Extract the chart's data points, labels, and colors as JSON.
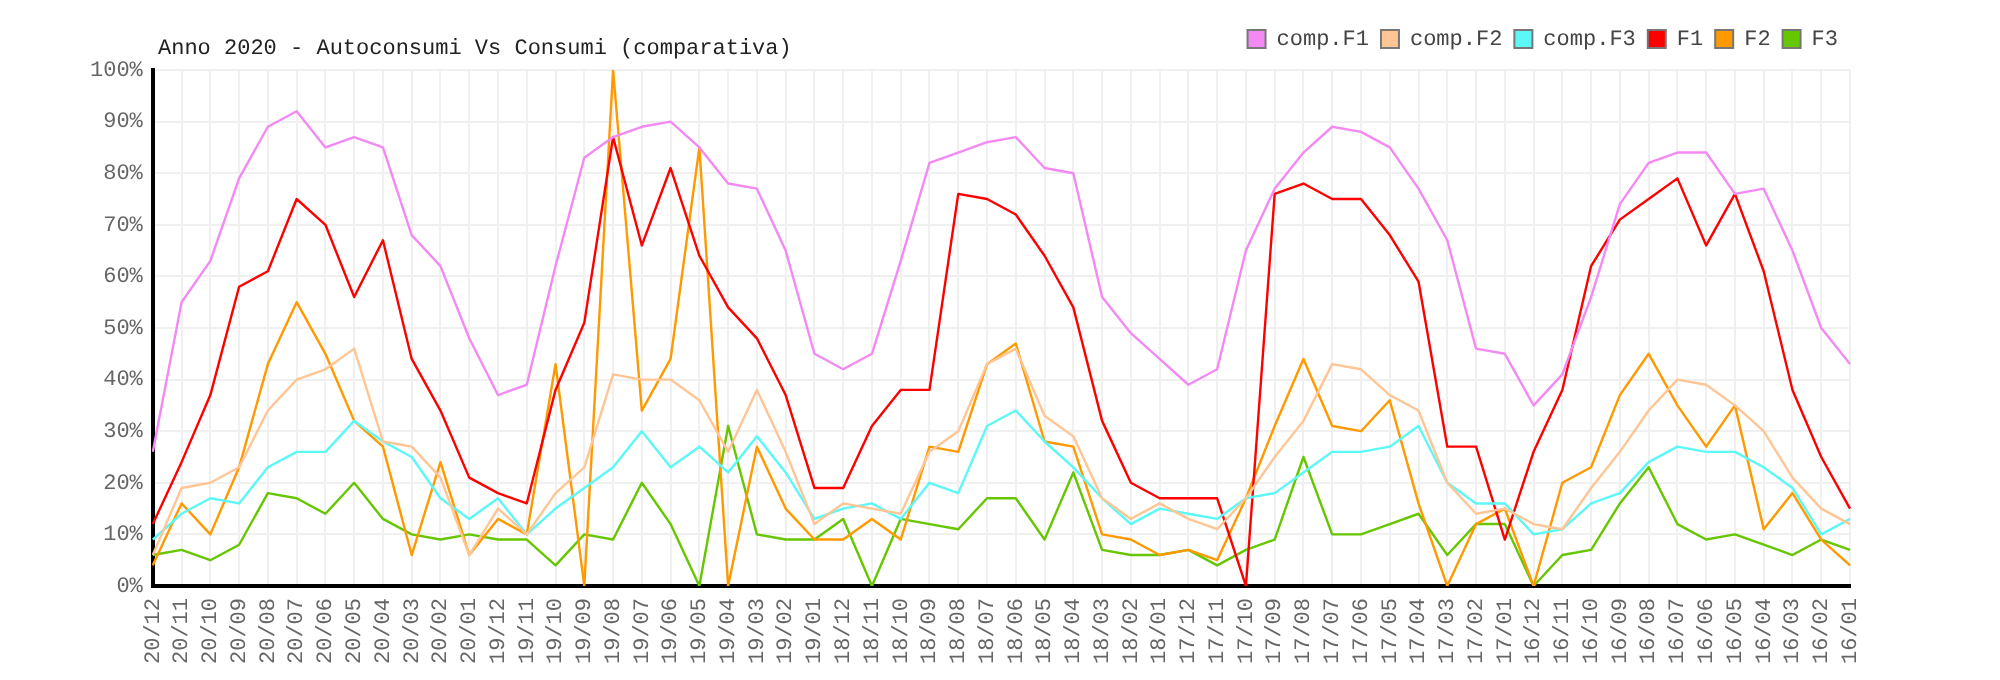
{
  "chart_data": {
    "type": "line",
    "title": "Anno 2020 - Autoconsumi Vs Consumi (comparativa)",
    "categories": [
      "20/12",
      "20/11",
      "20/10",
      "20/09",
      "20/08",
      "20/07",
      "20/06",
      "20/05",
      "20/04",
      "20/03",
      "20/02",
      "20/01",
      "19/12",
      "19/11",
      "19/10",
      "19/09",
      "19/08",
      "19/07",
      "19/06",
      "19/05",
      "19/04",
      "19/03",
      "19/02",
      "19/01",
      "18/12",
      "18/11",
      "18/10",
      "18/09",
      "18/08",
      "18/07",
      "18/06",
      "18/05",
      "18/04",
      "18/03",
      "18/02",
      "18/01",
      "17/12",
      "17/11",
      "17/10",
      "17/09",
      "17/08",
      "17/07",
      "17/06",
      "17/05",
      "17/04",
      "17/03",
      "17/02",
      "17/01",
      "16/12",
      "16/11",
      "16/10",
      "16/09",
      "16/08",
      "16/07",
      "16/06",
      "16/05",
      "16/04",
      "16/03",
      "16/02",
      "16/01"
    ],
    "series": [
      {
        "name": "comp.F1",
        "color": "#f38af3",
        "values": [
          26,
          55,
          63,
          79,
          89,
          92,
          85,
          87,
          85,
          68,
          62,
          48,
          37,
          39,
          62,
          83,
          87,
          89,
          90,
          85,
          78,
          77,
          65,
          45,
          42,
          45,
          63,
          82,
          84,
          86,
          87,
          81,
          80,
          56,
          49,
          44,
          39,
          42,
          65,
          77,
          84,
          89,
          88,
          85,
          77,
          67,
          46,
          45,
          35,
          41,
          56,
          74,
          82,
          84,
          84,
          76,
          77,
          65,
          50,
          43
        ]
      },
      {
        "name": "comp.F2",
        "color": "#ffc594",
        "values": [
          6,
          19,
          20,
          23,
          34,
          40,
          42,
          46,
          28,
          27,
          21,
          6,
          15,
          10,
          18,
          23,
          41,
          40,
          40,
          36,
          26,
          38,
          26,
          12,
          16,
          15,
          14,
          26,
          30,
          43,
          46,
          33,
          29,
          17,
          13,
          16,
          13,
          11,
          17,
          25,
          32,
          43,
          42,
          37,
          34,
          20,
          14,
          15,
          12,
          11,
          19,
          26,
          34,
          40,
          39,
          35,
          30,
          21,
          15,
          12
        ]
      },
      {
        "name": "comp.F3",
        "color": "#5cf8f8",
        "values": [
          9,
          14,
          17,
          16,
          23,
          26,
          26,
          32,
          28,
          25,
          17,
          13,
          17,
          10,
          15,
          19,
          23,
          30,
          23,
          27,
          22,
          29,
          22,
          13,
          15,
          16,
          13,
          20,
          18,
          31,
          34,
          28,
          23,
          17,
          12,
          15,
          14,
          13,
          17,
          18,
          22,
          26,
          26,
          27,
          31,
          20,
          16,
          16,
          10,
          11,
          16,
          18,
          24,
          27,
          26,
          26,
          23,
          19,
          10,
          13
        ]
      },
      {
        "name": "F1",
        "color": "#ff0000",
        "values": [
          12,
          24,
          37,
          58,
          61,
          75,
          70,
          56,
          67,
          44,
          34,
          21,
          18,
          16,
          38,
          51,
          87,
          66,
          81,
          64,
          54,
          48,
          37,
          19,
          19,
          31,
          38,
          38,
          76,
          75,
          72,
          64,
          54,
          32,
          20,
          17,
          17,
          17,
          0,
          76,
          78,
          75,
          75,
          68,
          59,
          27,
          27,
          9,
          26,
          38,
          62,
          71,
          75,
          79,
          66,
          76,
          61,
          38,
          25,
          15
        ]
      },
      {
        "name": "F2",
        "color": "#ff9900",
        "values": [
          4,
          16,
          10,
          23,
          43,
          55,
          45,
          32,
          27,
          6,
          24,
          6,
          13,
          10,
          43,
          0,
          100,
          34,
          44,
          85,
          0,
          27,
          15,
          9,
          9,
          13,
          9,
          27,
          26,
          43,
          47,
          28,
          27,
          10,
          9,
          6,
          7,
          5,
          17,
          31,
          44,
          31,
          30,
          36,
          16,
          0,
          12,
          15,
          0,
          20,
          23,
          37,
          45,
          35,
          27,
          35,
          11,
          18,
          9,
          4
        ]
      },
      {
        "name": "F3",
        "color": "#66c600",
        "values": [
          6,
          7,
          5,
          8,
          18,
          17,
          14,
          20,
          13,
          10,
          9,
          10,
          9,
          9,
          4,
          10,
          9,
          20,
          12,
          0,
          31,
          10,
          9,
          9,
          13,
          0,
          13,
          12,
          11,
          17,
          17,
          9,
          22,
          7,
          6,
          6,
          7,
          4,
          7,
          9,
          25,
          10,
          10,
          12,
          14,
          6,
          12,
          12,
          0,
          6,
          7,
          16,
          23,
          12,
          9,
          10,
          8,
          6,
          9,
          7
        ]
      }
    ],
    "ylim": [
      0,
      100
    ],
    "yticks": [
      {
        "value": 0,
        "label": "0%"
      },
      {
        "value": 10,
        "label": "10%"
      },
      {
        "value": 20,
        "label": "20%"
      },
      {
        "value": 30,
        "label": "30%"
      },
      {
        "value": 40,
        "label": "40%"
      },
      {
        "value": 50,
        "label": "50%"
      },
      {
        "value": 60,
        "label": "60%"
      },
      {
        "value": 70,
        "label": "70%"
      },
      {
        "value": 80,
        "label": "80%"
      },
      {
        "value": 90,
        "label": "90%"
      },
      {
        "value": 100,
        "label": "100%"
      }
    ],
    "grid": true,
    "legend": "top right",
    "marker": "none",
    "line_style": "solid"
  }
}
